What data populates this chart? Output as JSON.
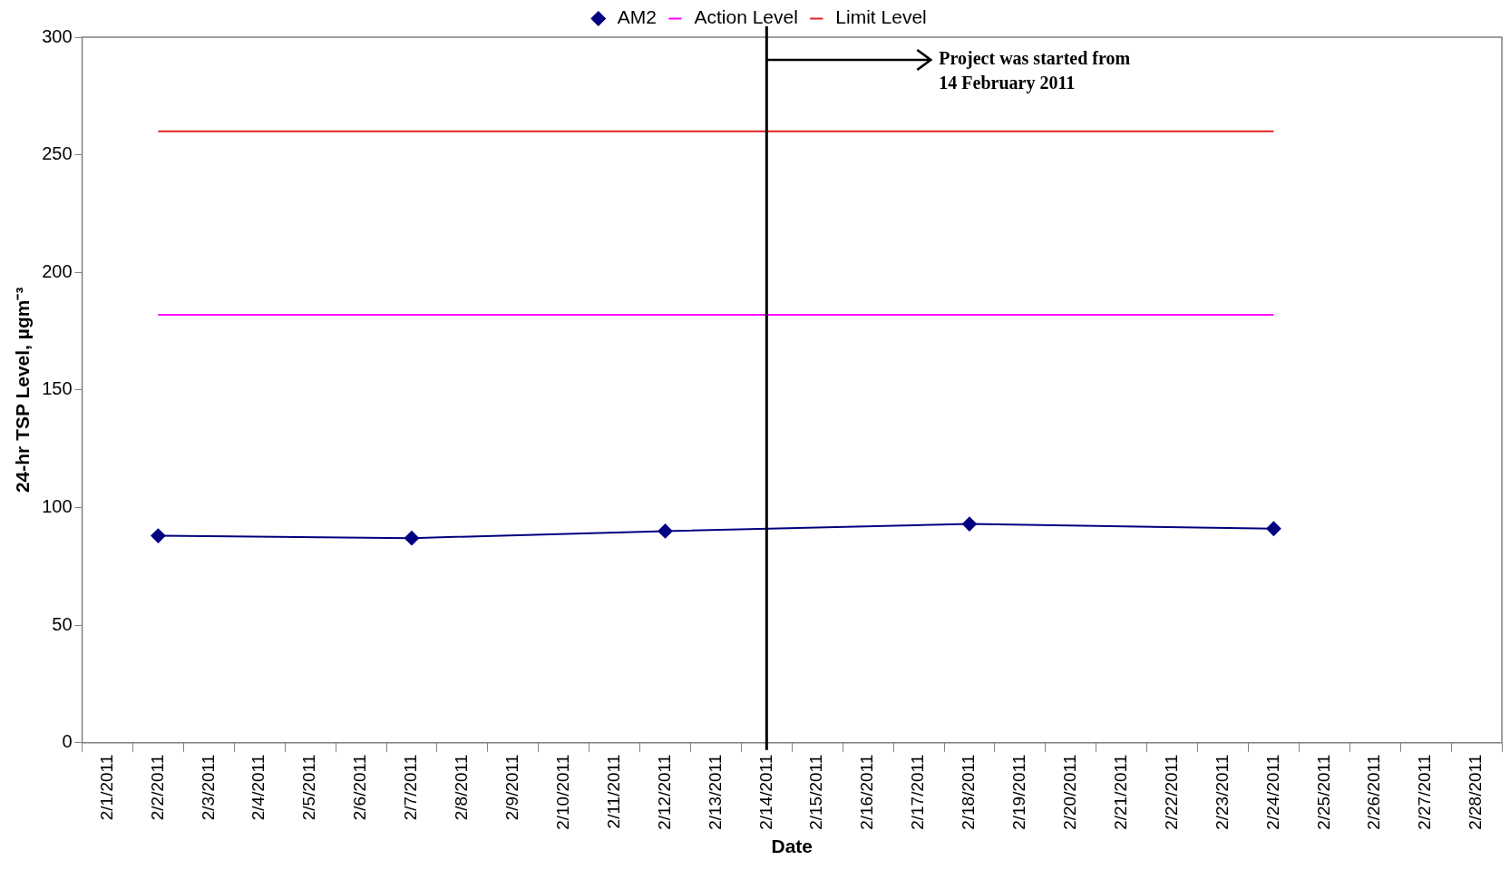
{
  "chart_data": {
    "type": "line",
    "xlabel": "Date",
    "ylabel": "24-hr TSP Level, µgm⁻³",
    "categories": [
      "2/1/2011",
      "2/2/2011",
      "2/3/2011",
      "2/4/2011",
      "2/5/2011",
      "2/6/2011",
      "2/7/2011",
      "2/8/2011",
      "2/9/2011",
      "2/10/2011",
      "2/11/2011",
      "2/12/2011",
      "2/13/2011",
      "2/14/2011",
      "2/15/2011",
      "2/16/2011",
      "2/17/2011",
      "2/18/2011",
      "2/19/2011",
      "2/20/2011",
      "2/21/2011",
      "2/22/2011",
      "2/23/2011",
      "2/24/2011",
      "2/25/2011",
      "2/26/2011",
      "2/27/2011",
      "2/28/2011"
    ],
    "series": [
      {
        "name": "AM2",
        "color": "#000080",
        "marker": "diamond",
        "values": [
          null,
          88,
          null,
          null,
          null,
          null,
          87,
          null,
          null,
          null,
          null,
          90,
          null,
          null,
          null,
          null,
          null,
          93,
          null,
          null,
          null,
          null,
          null,
          91,
          null,
          null,
          null,
          null
        ]
      },
      {
        "name": "Action Level",
        "color": "#ff00ff",
        "marker": "none",
        "values": [
          null,
          182,
          182,
          182,
          182,
          182,
          182,
          182,
          182,
          182,
          182,
          182,
          182,
          182,
          182,
          182,
          182,
          182,
          182,
          182,
          182,
          182,
          182,
          182,
          null,
          null,
          null,
          null
        ]
      },
      {
        "name": "Limit Level",
        "color": "#e02020",
        "marker": "none",
        "values": [
          null,
          260,
          260,
          260,
          260,
          260,
          260,
          260,
          260,
          260,
          260,
          260,
          260,
          260,
          260,
          260,
          260,
          260,
          260,
          260,
          260,
          260,
          260,
          260,
          null,
          null,
          null,
          null
        ]
      }
    ],
    "ylim": [
      0,
      300
    ],
    "yticks": [
      0,
      50,
      100,
      150,
      200,
      250,
      300
    ],
    "grid": false,
    "legend": "top",
    "ref_lines": [
      {
        "axis": "x",
        "value": "2/14/2011",
        "label": "Project was started from 14 February 2011",
        "color": "#000000"
      }
    ]
  }
}
